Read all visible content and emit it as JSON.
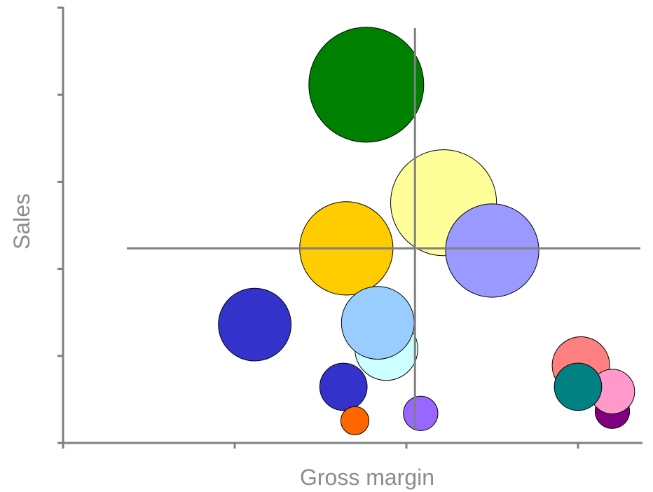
{
  "chart_data": {
    "type": "scatter",
    "subtype": "bubble",
    "xlabel": "Gross margin",
    "ylabel": "Sales",
    "xlim": [
      0,
      10
    ],
    "ylim": [
      0,
      100
    ],
    "x_ticks": [
      0,
      3,
      6,
      9
    ],
    "y_ticks": [
      0,
      20,
      40,
      60,
      80,
      100
    ],
    "tick_labels_shown": false,
    "grid": false,
    "legend": "none",
    "axis_color": "#808080",
    "reference_lines": {
      "x": 6.15,
      "y": 44.7,
      "color": "#808080"
    },
    "points": [
      {
        "x": 5.3,
        "y": 82.3,
        "size": 100,
        "color": "#008000"
      },
      {
        "x": 6.65,
        "y": 55.2,
        "size": 85,
        "color": "#FFFF99"
      },
      {
        "x": 4.95,
        "y": 44.7,
        "size": 66,
        "color": "#FFCC00"
      },
      {
        "x": 7.5,
        "y": 44.2,
        "size": 66,
        "color": "#9999FF"
      },
      {
        "x": 3.35,
        "y": 27.2,
        "size": 40,
        "color": "#3333CC"
      },
      {
        "x": 5.65,
        "y": 21.6,
        "size": 30,
        "color": "#CCFFFF"
      },
      {
        "x": 5.5,
        "y": 27.6,
        "size": 40,
        "color": "#99CCFF"
      },
      {
        "x": 4.9,
        "y": 12.9,
        "size": 17,
        "color": "#3333CC"
      },
      {
        "x": 5.1,
        "y": 5.1,
        "size": 6,
        "color": "#FF6600"
      },
      {
        "x": 6.25,
        "y": 6.8,
        "size": 9,
        "color": "#9966FF"
      },
      {
        "x": 9.05,
        "y": 17.8,
        "size": 25,
        "color": "#FF8080"
      },
      {
        "x": 9.6,
        "y": 7.3,
        "size": 9,
        "color": "#800080"
      },
      {
        "x": 9.6,
        "y": 11.8,
        "size": 15,
        "color": "#FF99CC"
      },
      {
        "x": 9.0,
        "y": 12.9,
        "size": 17,
        "color": "#008080"
      }
    ]
  }
}
